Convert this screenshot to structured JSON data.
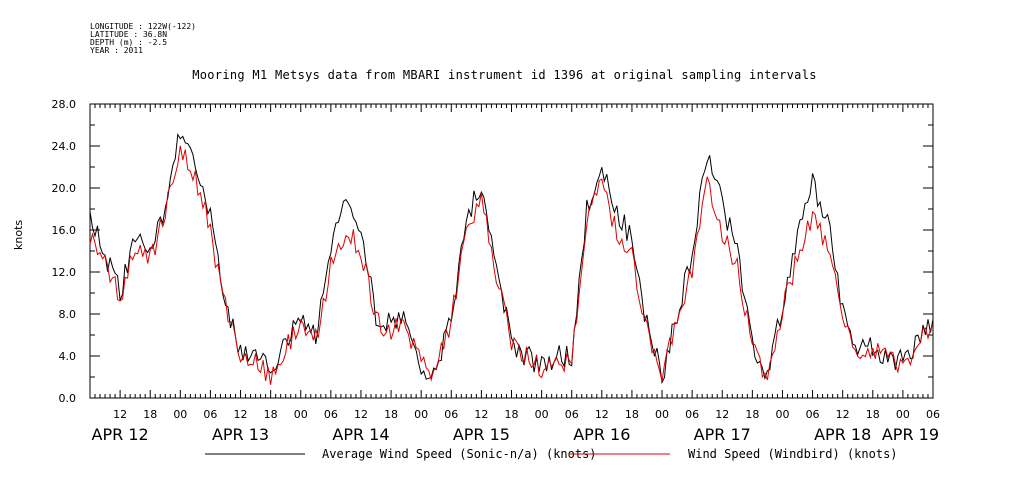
{
  "header": {
    "longitude": "LONGITUDE : 122W(-122)",
    "latitude": "LATITUDE : 36.8N",
    "depth": "DEPTH (m) : -2.5",
    "year": "YEAR : 2011"
  },
  "chart_data": {
    "type": "line",
    "title": "Mooring M1 Metsys data from MBARI instrument id 1396 at original sampling intervals",
    "xlabel": "",
    "ylabel": "knots",
    "ylim": [
      0,
      28
    ],
    "y_ticks": [
      "0.0",
      "4.0",
      "8.0",
      "12.0",
      "16.0",
      "20.0",
      "24.0",
      "28.0"
    ],
    "xlim_hours": [
      6,
      174
    ],
    "x_hour_ticks": [
      "12",
      "18",
      "00",
      "06",
      "12",
      "18",
      "00",
      "06",
      "12",
      "18",
      "00",
      "06",
      "12",
      "18",
      "00",
      "06",
      "12",
      "18",
      "00",
      "06",
      "12",
      "18",
      "00",
      "06",
      "12",
      "18",
      "00",
      "06"
    ],
    "x_date_labels": [
      "APR 12",
      "APR 13",
      "APR 14",
      "APR 15",
      "APR 16",
      "APR 17",
      "APR 18",
      "APR 19"
    ],
    "grid": false,
    "legend_position": "bottom",
    "series": [
      {
        "name": "Average Wind Speed (Sonic-n/a) (knots)",
        "color": "#000000",
        "x": [
          6,
          9,
          12,
          15,
          18,
          21,
          24,
          27,
          30,
          33,
          36,
          39,
          42,
          45,
          48,
          51,
          54,
          57,
          60,
          63,
          66,
          69,
          72,
          75,
          78,
          81,
          84,
          87,
          90,
          93,
          96,
          99,
          102,
          105,
          108,
          111,
          114,
          117,
          120,
          123,
          126,
          129,
          132,
          135,
          138,
          141,
          144,
          147,
          150,
          153,
          156,
          159,
          162,
          165,
          168,
          171,
          174
        ],
        "y": [
          17.5,
          13.5,
          10,
          15,
          14,
          18,
          25.5,
          23,
          17,
          9,
          4,
          4,
          2.5,
          5,
          8,
          6,
          14,
          19.5,
          16.5,
          8,
          7,
          7.5,
          3,
          2.5,
          8,
          17,
          20.5,
          13,
          5,
          4,
          3,
          4,
          4,
          18,
          21.5,
          18,
          15,
          7,
          2,
          8,
          14,
          23,
          18.5,
          14,
          5,
          2,
          9,
          15,
          20.5,
          17,
          8,
          4.5,
          5,
          3.5,
          3.5,
          5.5,
          7.5
        ]
      },
      {
        "name": "Wind Speed (Windbird) (knots)",
        "color": "#dd0000",
        "x": [
          6,
          9,
          12,
          15,
          18,
          21,
          24,
          27,
          30,
          33,
          36,
          39,
          42,
          45,
          48,
          51,
          54,
          57,
          60,
          63,
          66,
          69,
          72,
          75,
          78,
          81,
          84,
          87,
          90,
          93,
          96,
          99,
          102,
          105,
          108,
          111,
          114,
          117,
          120,
          123,
          126,
          129,
          132,
          135,
          138,
          141,
          144,
          147,
          150,
          153,
          156,
          159,
          162,
          165,
          168,
          171,
          174
        ],
        "y": [
          15.5,
          12.5,
          9.5,
          14,
          13,
          17.5,
          23.5,
          21,
          16,
          8.5,
          4,
          3.5,
          2,
          4.5,
          7.5,
          5.5,
          12.5,
          16,
          14,
          7.5,
          6.5,
          7,
          3,
          2.5,
          7.5,
          15.5,
          18.5,
          12,
          5,
          4,
          3,
          3.5,
          3.5,
          17,
          20.5,
          15.5,
          13.5,
          6.5,
          2,
          7.5,
          12.5,
          20,
          16,
          12.5,
          5,
          2,
          8.5,
          13.5,
          17,
          15,
          7.5,
          4,
          4.5,
          3.5,
          3,
          5,
          7
        ]
      }
    ]
  }
}
